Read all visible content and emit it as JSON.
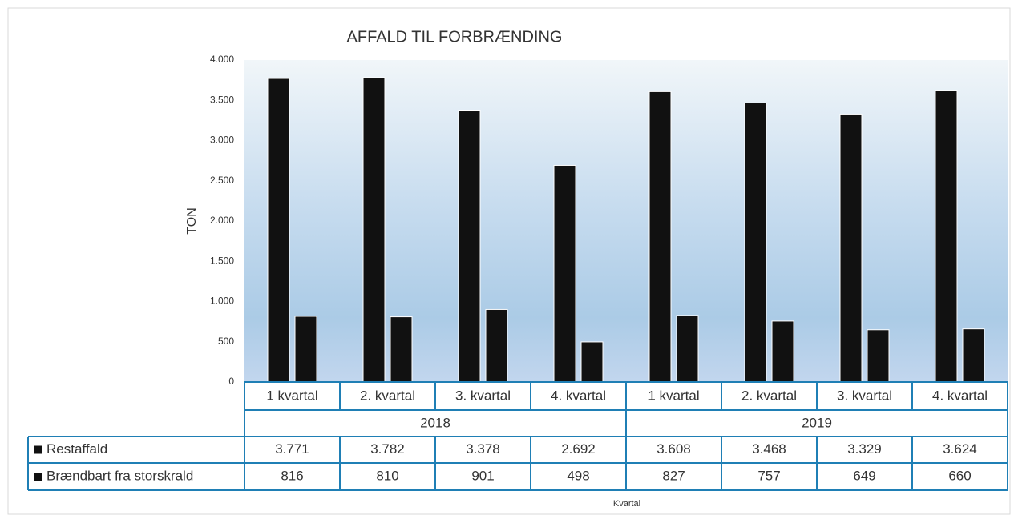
{
  "chart_data": {
    "type": "bar",
    "title": "AFFALD TIL FORBRÆNDING",
    "y_label": "TON",
    "x_label": "Kvartal",
    "categories": [
      "1 kvartal",
      "2. kvartal",
      "3. kvartal",
      "4. kvartal",
      "1 kvartal",
      "2. kvartal",
      "3. kvartal",
      "4. kvartal"
    ],
    "groups": [
      "2018",
      "2019"
    ],
    "series": [
      {
        "name": "Restaffald",
        "color": "#111111",
        "values": [
          3771,
          3782,
          3378,
          2692,
          3608,
          3468,
          3329,
          3624
        ],
        "value_labels": [
          "3.771",
          "3.782",
          "3.378",
          "2.692",
          "3.608",
          "3.468",
          "3.329",
          "3.624"
        ]
      },
      {
        "name": "Brændbart fra storskrald",
        "color": "#111111",
        "values": [
          816,
          810,
          901,
          498,
          827,
          757,
          649,
          660
        ]
      }
    ],
    "ylim": [
      0,
      4000
    ],
    "yticks": [
      0,
      500,
      {
        "value": 1000,
        "label": "1.000"
      },
      {
        "value": 1500,
        "label": "1.500"
      },
      {
        "value": 2000,
        "label": "2.000"
      },
      {
        "value": 2500,
        "label": "2.500"
      },
      {
        "value": 3000,
        "label": "3.000"
      },
      {
        "value": 3500,
        "label": "3.500"
      },
      {
        "value": 4000,
        "label": "4.000"
      }
    ],
    "data_table": true
  }
}
